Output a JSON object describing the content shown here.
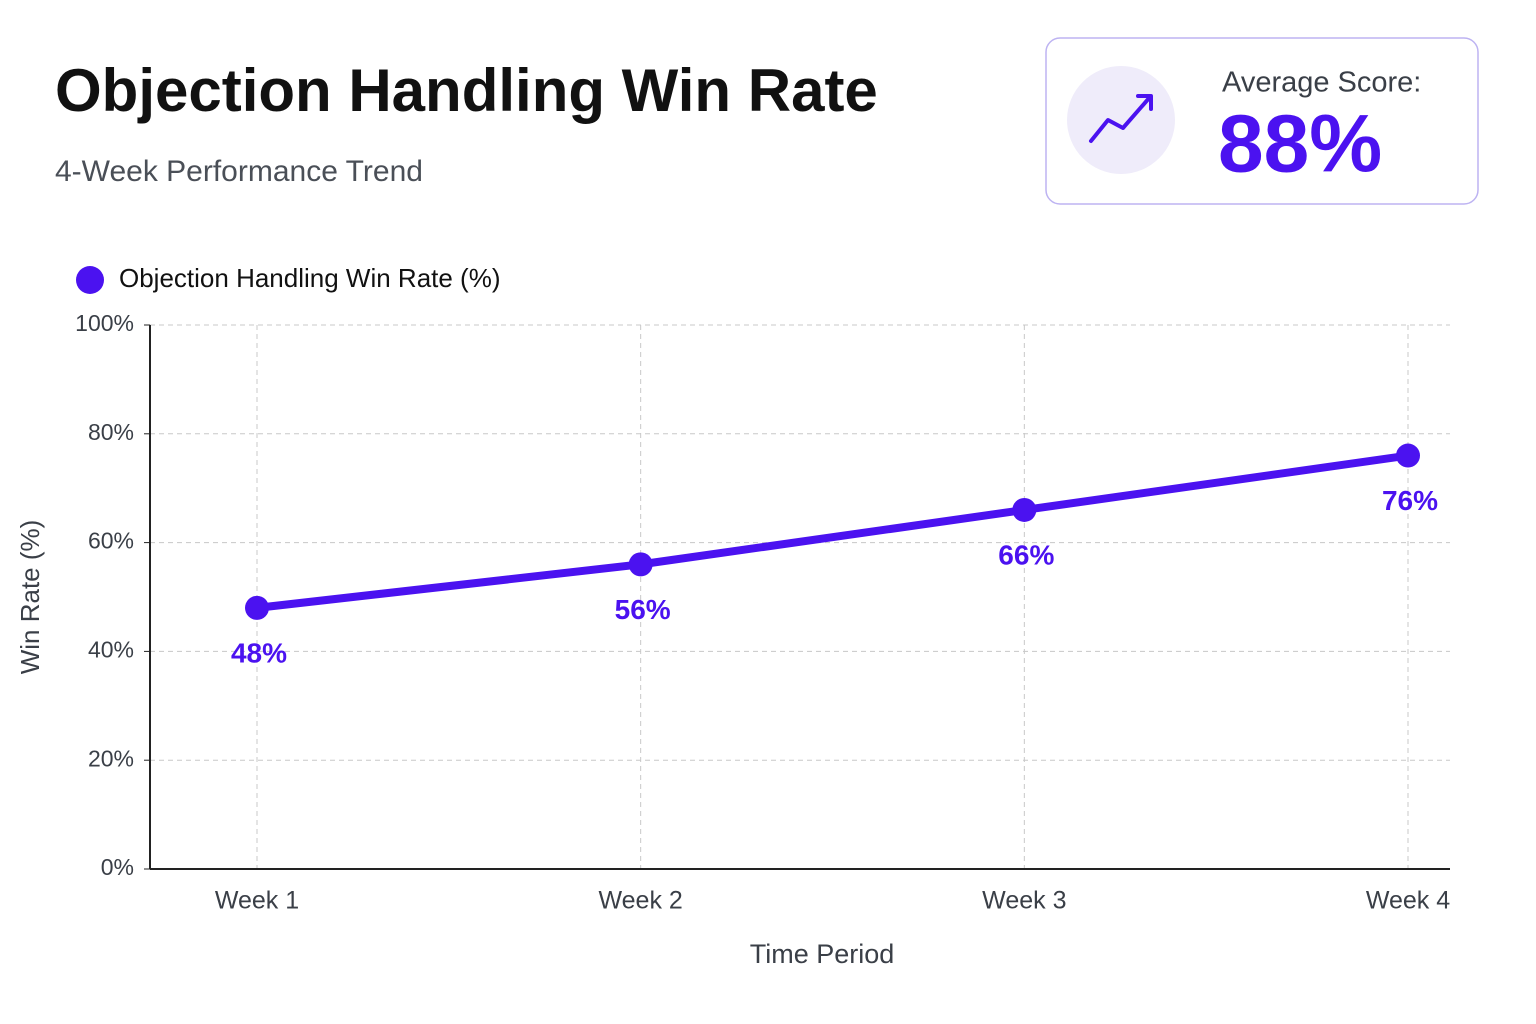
{
  "header": {
    "title": "Objection Handling Win Rate",
    "subtitle": "4-Week Performance Trend"
  },
  "kpi": {
    "label": "Average Score:",
    "value": "88%"
  },
  "chart_data": {
    "type": "line",
    "categories": [
      "Week 1",
      "Week 2",
      "Week 3",
      "Week 4"
    ],
    "series": [
      {
        "name": "Objection Handling Win Rate (%)",
        "color": "#4b12f0",
        "values": [
          48,
          56,
          66,
          76
        ],
        "value_labels": [
          "48%",
          "56%",
          "66%",
          "76%"
        ]
      }
    ],
    "ylim": [
      0,
      100
    ],
    "yticks": [
      {
        "value": 0,
        "label": "0%"
      },
      {
        "value": 20,
        "label": "20%"
      },
      {
        "value": 40,
        "label": "40%"
      },
      {
        "value": 60,
        "label": "60%"
      },
      {
        "value": 80,
        "label": "80%"
      },
      {
        "value": 100,
        "label": "100%"
      }
    ],
    "xlabel": "Time Period",
    "ylabel": "Win Rate (%)",
    "grid": true,
    "legend": "top-left"
  }
}
